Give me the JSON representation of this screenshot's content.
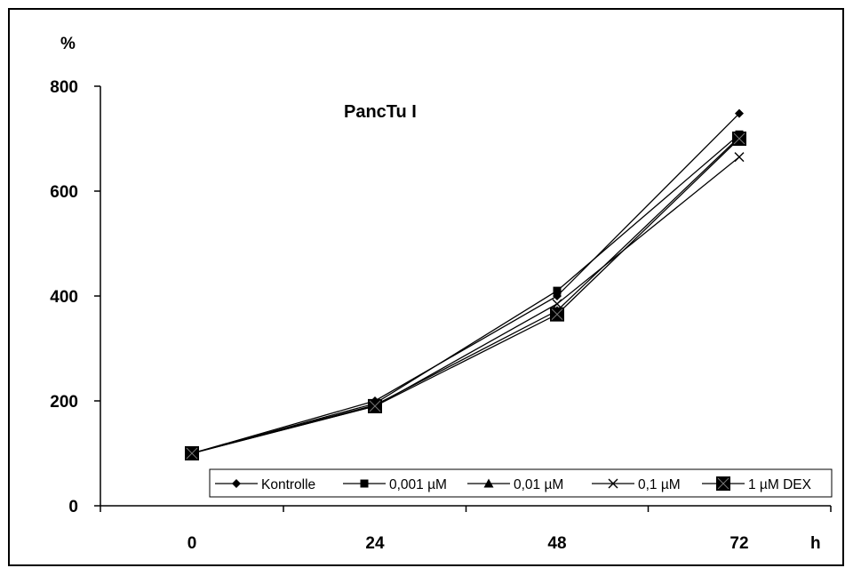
{
  "chart_data": {
    "type": "line",
    "title": "PancTu I",
    "ylabel": "%",
    "xlabel": "h",
    "categories": [
      "0",
      "24",
      "48",
      "72"
    ],
    "yticks": [
      "0",
      "200",
      "400",
      "600",
      "800"
    ],
    "ylim": [
      0,
      800
    ],
    "grid": false,
    "legend_position": "bottom-right",
    "series": [
      {
        "name": "Kontrolle",
        "marker": "diamond",
        "values": [
          100,
          200,
          400,
          748
        ]
      },
      {
        "name": "0,001 µM",
        "marker": "square",
        "values": [
          100,
          195,
          410,
          708
        ]
      },
      {
        "name": "0,01 µM",
        "marker": "triangle",
        "values": [
          100,
          192,
          372,
          703
        ]
      },
      {
        "name": "0,1 µM",
        "marker": "x",
        "values": [
          100,
          190,
          385,
          665
        ]
      },
      {
        "name": "1 µM DEX",
        "marker": "big-square",
        "values": [
          100,
          190,
          365,
          700
        ]
      }
    ],
    "line_color": "#000000"
  }
}
